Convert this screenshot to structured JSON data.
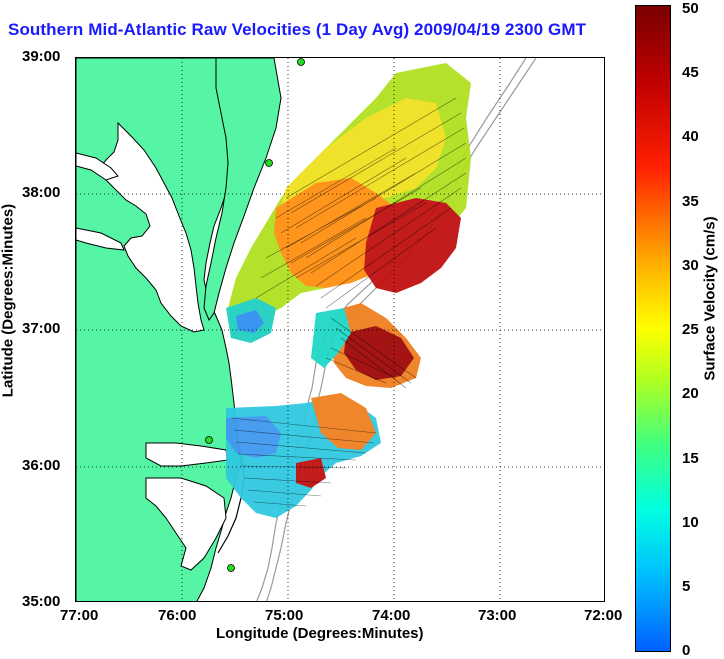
{
  "title": "Southern Mid-Atlantic Raw Velocities (1 Day Avg) 2009/04/19 2300 GMT",
  "xlabel": "Longitude (Degrees:Minutes)",
  "ylabel": "Latitude (Degrees:Minutes)",
  "x_ticks": [
    "77:00",
    "76:00",
    "75:00",
    "74:00",
    "73:00",
    "72:00"
  ],
  "y_ticks": [
    "39:00",
    "38:00",
    "37:00",
    "36:00",
    "35:00"
  ],
  "colorbar": {
    "label": "Surface Velocity (cm/s)",
    "ticks": [
      "50",
      "45",
      "40",
      "35",
      "30",
      "25",
      "20",
      "15",
      "10",
      "5",
      "0"
    ],
    "range": [
      0,
      50
    ]
  },
  "colors": {
    "land": "#55f5a5",
    "title": "#1a1aff",
    "coast": "#000000",
    "bathymetry": "#9a9a9a",
    "station": "#22dd22"
  }
}
